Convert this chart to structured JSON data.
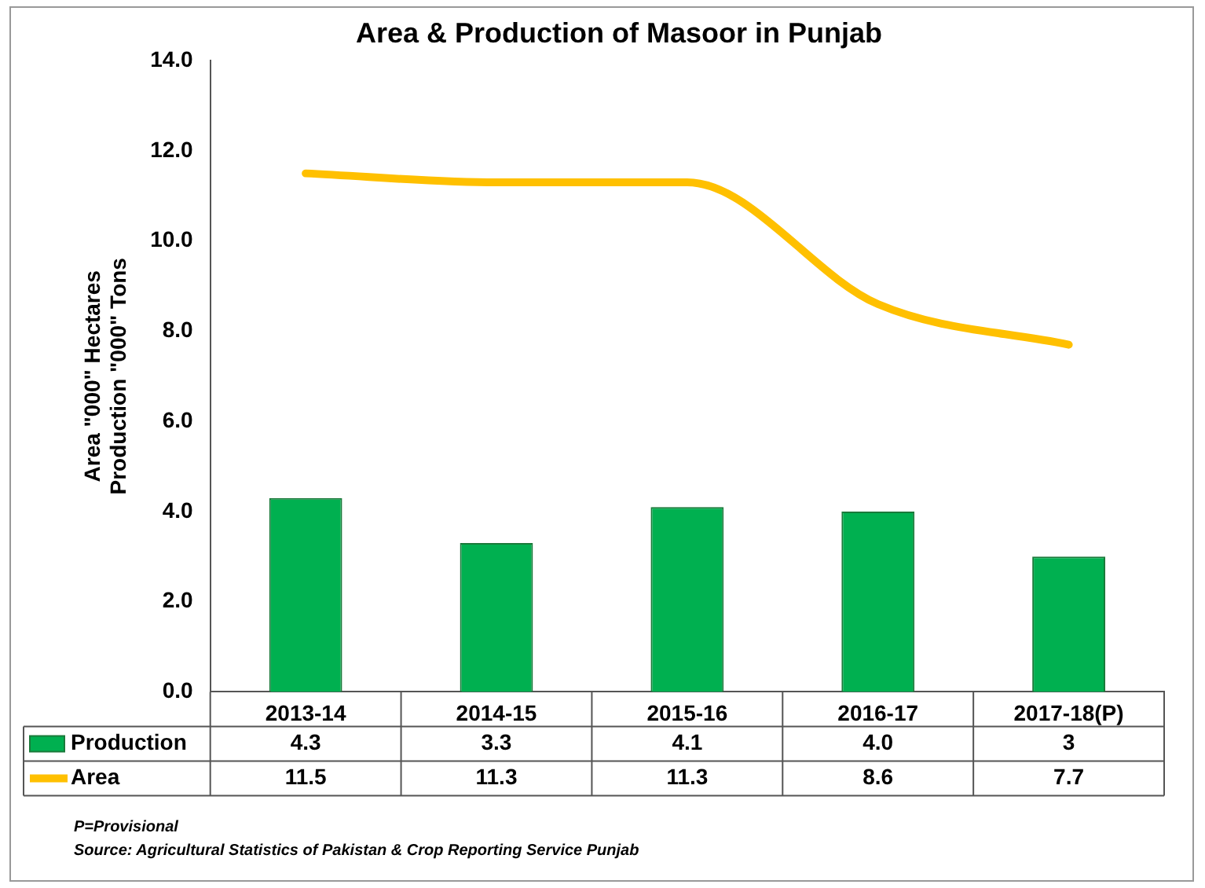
{
  "chart_data": {
    "type": "bar",
    "title": "Area & Production of Masoor in Punjab",
    "ylabel": "Area \"000\" Hectares\nProduction \"000\" Tons",
    "categories": [
      "2013-14",
      "2014-15",
      "2015-16",
      "2016-17",
      "2017-18(P)"
    ],
    "series": [
      {
        "name": "Production",
        "color": "#00b050",
        "values": [
          4.3,
          3.3,
          4.1,
          4.0,
          3
        ],
        "value_labels": [
          "4.3",
          "3.3",
          "4.1",
          "4.0",
          "3"
        ]
      },
      {
        "name": "Area",
        "type": "line",
        "color": "#ffc000",
        "values": [
          11.5,
          11.3,
          11.3,
          8.6,
          7.7
        ],
        "value_labels": [
          "11.5",
          "11.3",
          "11.3",
          "8.6",
          "7.7"
        ]
      }
    ],
    "ylim": [
      0,
      14
    ],
    "yticks": [
      {
        "value": 0,
        "label": "0.0"
      },
      {
        "value": 2,
        "label": "2.0"
      },
      {
        "value": 4,
        "label": "4.0"
      },
      {
        "value": 6,
        "label": "6.0"
      },
      {
        "value": 8,
        "label": "8.0"
      },
      {
        "value": 10,
        "label": "10.0"
      },
      {
        "value": 12,
        "label": "12.0"
      },
      {
        "value": 14,
        "label": "14.0"
      }
    ],
    "grid": false,
    "legend": "bottom",
    "marker": "none",
    "line_style": "solid",
    "annotations": [
      "P=Provisional",
      "Source: Agricultural Statistics of Pakistan & Crop Reporting Service Punjab"
    ]
  }
}
